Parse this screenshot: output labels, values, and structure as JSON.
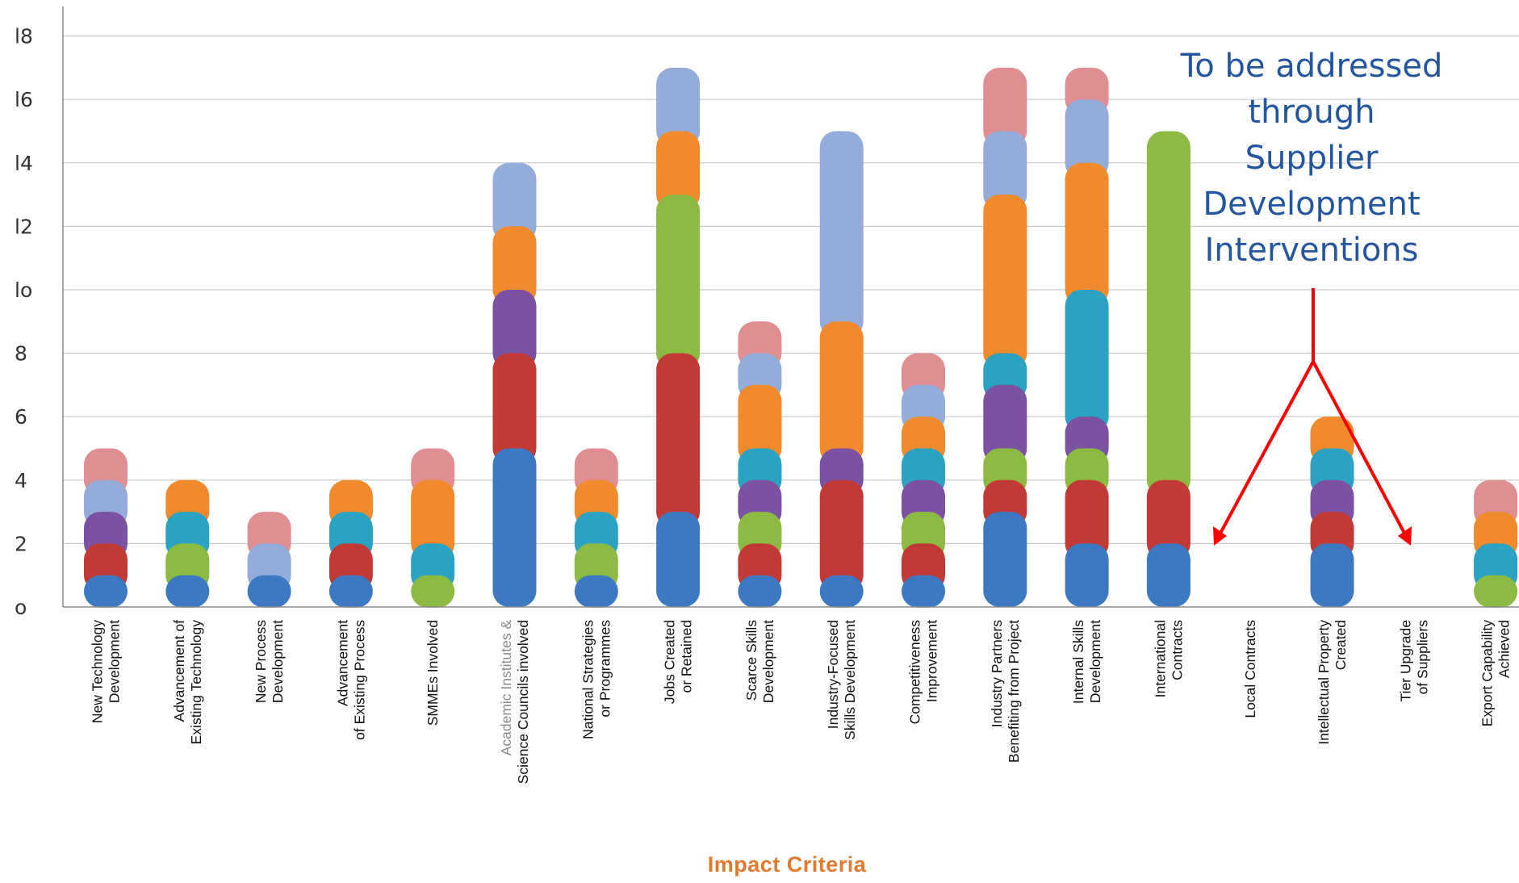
{
  "chart_data": {
    "type": "bar",
    "stacked": true,
    "xlabel": "Impact Criteria",
    "ylabel": "",
    "ylim": [
      0,
      18
    ],
    "yticks": [
      0,
      2,
      4,
      6,
      8,
      10,
      12,
      14,
      16,
      18
    ],
    "ytick_labels": [
      "o",
      "2",
      "4",
      "6",
      "8",
      "lo",
      "l2",
      "l4",
      "l6",
      "l8"
    ],
    "grid": true,
    "legend": "none",
    "categories": [
      [
        "New Technology",
        "Development"
      ],
      [
        "Advancement of",
        "Existing Technology"
      ],
      [
        "New Process",
        "Development"
      ],
      [
        "Advancement",
        "of Existing Process"
      ],
      [
        "SMMEs Involved"
      ],
      [
        "Academic Institutes &",
        "Science Councils involved"
      ],
      [
        "National Strategies",
        "or Programmes"
      ],
      [
        "Jobs Created",
        "or Retained"
      ],
      [
        "Scarce Skills",
        "Development"
      ],
      [
        "Industry-Focused",
        "Skills Development"
      ],
      [
        "Competitiveness",
        "Improvement"
      ],
      [
        "Industry Partners",
        "Benefiting from Project"
      ],
      [
        "Internal Skills",
        "Development"
      ],
      [
        "International",
        "Contracts"
      ],
      [
        "Local Contracts"
      ],
      [
        "Intellectual Property",
        "Created"
      ],
      [
        "Tier Upgrade",
        "of Suppliers"
      ],
      [
        "Export Capability",
        "Achieved"
      ]
    ],
    "segment_colors": {
      "blue": "#3d78c3",
      "red": "#c23a35",
      "green": "#8cba42",
      "purple": "#7b52a2",
      "teal": "#2ba2c2",
      "orange": "#f08a2d",
      "lightblue": "#93acd9",
      "pink": "#df8e91"
    },
    "stacks": [
      [
        [
          "blue",
          1
        ],
        [
          "red",
          1
        ],
        [
          "purple",
          1
        ],
        [
          "lightblue",
          1
        ],
        [
          "pink",
          1
        ]
      ],
      [
        [
          "blue",
          1
        ],
        [
          "green",
          1
        ],
        [
          "teal",
          1
        ],
        [
          "orange",
          1
        ]
      ],
      [
        [
          "blue",
          1
        ],
        [
          "lightblue",
          1
        ],
        [
          "pink",
          1
        ]
      ],
      [
        [
          "blue",
          1
        ],
        [
          "red",
          1
        ],
        [
          "teal",
          1
        ],
        [
          "orange",
          1
        ]
      ],
      [
        [
          "green",
          1
        ],
        [
          "teal",
          1
        ],
        [
          "orange",
          2
        ],
        [
          "pink",
          1
        ]
      ],
      [
        [
          "blue",
          5
        ],
        [
          "red",
          3
        ],
        [
          "purple",
          2
        ],
        [
          "orange",
          2
        ],
        [
          "lightblue",
          2
        ]
      ],
      [
        [
          "blue",
          1
        ],
        [
          "green",
          1
        ],
        [
          "teal",
          1
        ],
        [
          "orange",
          1
        ],
        [
          "pink",
          1
        ]
      ],
      [
        [
          "blue",
          3
        ],
        [
          "red",
          5
        ],
        [
          "green",
          5
        ],
        [
          "orange",
          2
        ],
        [
          "lightblue",
          2
        ]
      ],
      [
        [
          "blue",
          1
        ],
        [
          "red",
          1
        ],
        [
          "green",
          1
        ],
        [
          "purple",
          1
        ],
        [
          "teal",
          1
        ],
        [
          "orange",
          2
        ],
        [
          "lightblue",
          1
        ],
        [
          "pink",
          1
        ]
      ],
      [
        [
          "blue",
          1
        ],
        [
          "red",
          3
        ],
        [
          "purple",
          1
        ],
        [
          "orange",
          4
        ],
        [
          "lightblue",
          6
        ]
      ],
      [
        [
          "blue",
          1
        ],
        [
          "red",
          1
        ],
        [
          "green",
          1
        ],
        [
          "purple",
          1
        ],
        [
          "teal",
          1
        ],
        [
          "orange",
          1
        ],
        [
          "lightblue",
          1
        ],
        [
          "pink",
          1
        ]
      ],
      [
        [
          "blue",
          3
        ],
        [
          "red",
          1
        ],
        [
          "green",
          1
        ],
        [
          "purple",
          2
        ],
        [
          "teal",
          1
        ],
        [
          "orange",
          5
        ],
        [
          "lightblue",
          2
        ],
        [
          "pink",
          2
        ]
      ],
      [
        [
          "blue",
          2
        ],
        [
          "red",
          2
        ],
        [
          "green",
          1
        ],
        [
          "purple",
          1
        ],
        [
          "teal",
          4
        ],
        [
          "orange",
          4
        ],
        [
          "lightblue",
          2
        ],
        [
          "pink",
          1
        ]
      ],
      [
        [
          "blue",
          2
        ],
        [
          "red",
          2
        ],
        [
          "green",
          11
        ]
      ],
      [],
      [
        [
          "blue",
          2
        ],
        [
          "red",
          1
        ],
        [
          "purple",
          1
        ],
        [
          "teal",
          1
        ],
        [
          "orange",
          1
        ]
      ],
      [],
      [
        [
          "green",
          1
        ],
        [
          "teal",
          1
        ],
        [
          "orange",
          1
        ],
        [
          "pink",
          1
        ]
      ]
    ],
    "totals": [
      5,
      4,
      3,
      4,
      5,
      14,
      5,
      17,
      9,
      15,
      8,
      17,
      17,
      15,
      0,
      6,
      0,
      4
    ],
    "annotation": {
      "text_lines": [
        "To be addressed",
        "through",
        "Supplier",
        "Development",
        "Interventions"
      ],
      "color": "#24569f",
      "arrow_color": "#ff0000",
      "points_to": [
        "Local Contracts",
        "Tier Upgrade of Suppliers"
      ]
    }
  }
}
